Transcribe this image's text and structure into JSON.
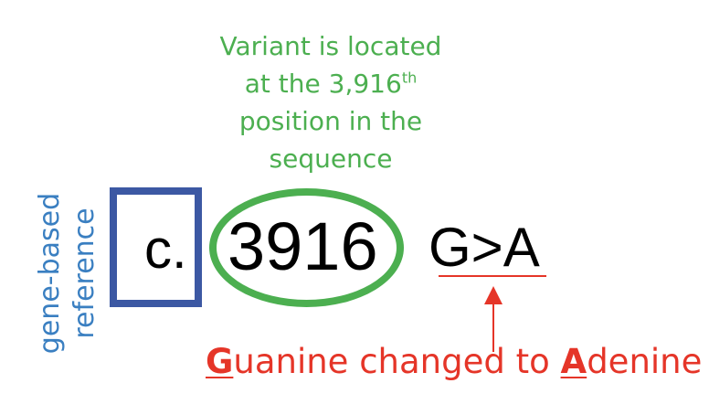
{
  "variant_label": {
    "line1": "Variant is located",
    "line2_prefix": "at the 3,916",
    "line2_superscript": "th",
    "line3": "position in the",
    "line4": "sequence"
  },
  "reference_label": {
    "line1": "gene-based",
    "line2": "reference"
  },
  "notation": {
    "prefix": "c.",
    "position": "3916",
    "change": "G>A"
  },
  "change_label": {
    "from_initial": "G",
    "from_rest": "uanine",
    "middle": " changed to ",
    "to_initial": "A",
    "to_rest": "denine"
  },
  "colors": {
    "green": "#4caf50",
    "blue_text": "#3a7fc1",
    "blue_box": "#3c58a3",
    "red": "#e53528"
  }
}
